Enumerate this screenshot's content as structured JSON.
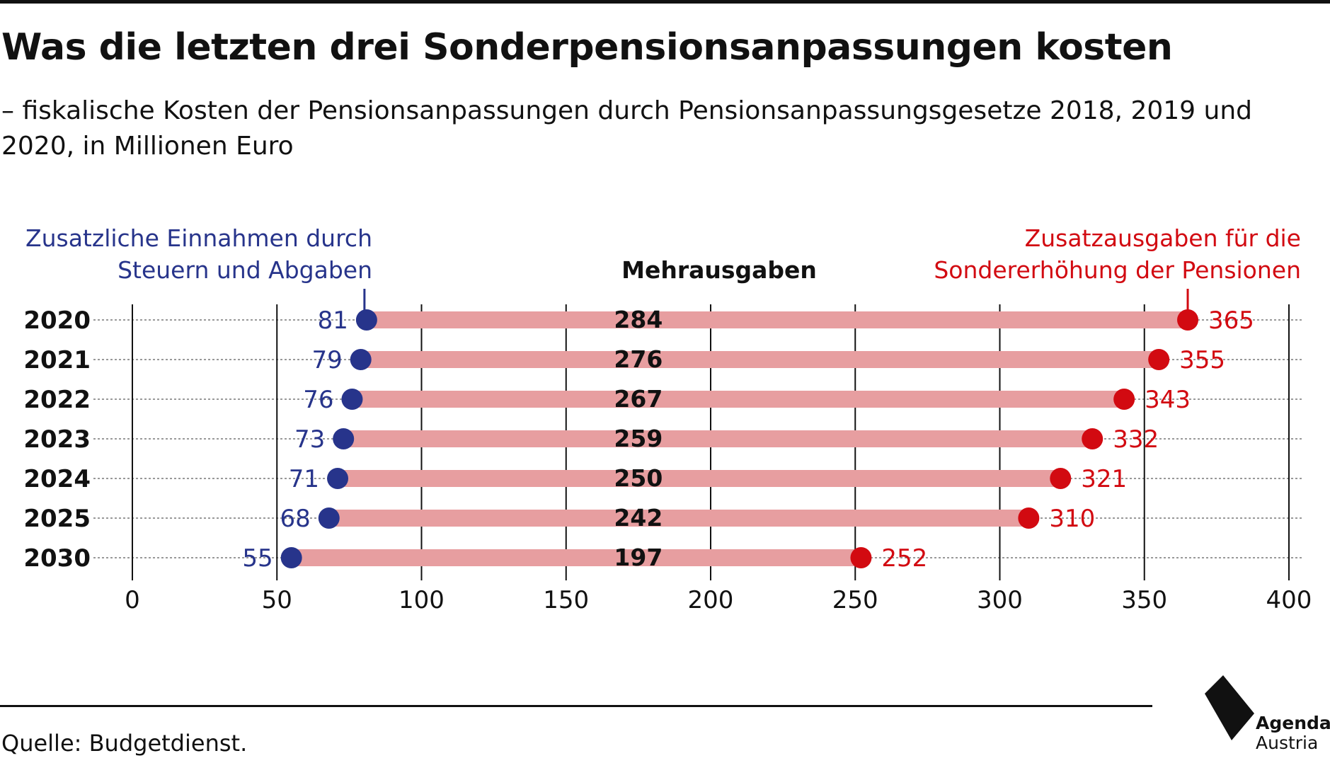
{
  "title": "Was die letzten drei Sonderpensionsanpassungen kosten",
  "subtitle": "– fiskalische Kosten der Pensionsanpassungen durch Pensionsanpassungsgesetze 2018, 2019 und 2020, in Millionen Euro",
  "source": "Quelle: Budgetdienst.",
  "logo": {
    "line1": "Agenda",
    "line2": "Austria"
  },
  "colors": {
    "blue": "#27348b",
    "red": "#d20a11",
    "bar": "#e79ea0",
    "text": "#111111"
  },
  "chart_data": {
    "type": "dumbbell",
    "categories": [
      "2020",
      "2021",
      "2022",
      "2023",
      "2024",
      "2025",
      "2030"
    ],
    "series": [
      {
        "name": "Zusatzliche Einnahmen durch Steuern und Abgaben",
        "values": [
          81,
          79,
          76,
          73,
          71,
          68,
          55
        ]
      },
      {
        "name": "Zusatzausgaben für die Sondererhöhung der Pensionen",
        "values": [
          365,
          355,
          343,
          332,
          321,
          310,
          252
        ]
      }
    ],
    "difference": {
      "name": "Mehrausgaben",
      "values": [
        284,
        276,
        267,
        259,
        250,
        242,
        197
      ]
    },
    "legend": {
      "left": [
        "Zusatzliche Einnahmen durch",
        "Steuern und Abgaben"
      ],
      "center": "Mehrausgaben",
      "right": [
        "Zusatzausgaben für die",
        "Sondererhöhung der Pensionen"
      ]
    },
    "xlim": [
      0,
      400
    ],
    "xticks": [
      "0",
      "50",
      "100",
      "150",
      "200",
      "250",
      "300",
      "350",
      "400"
    ],
    "grid": true
  }
}
